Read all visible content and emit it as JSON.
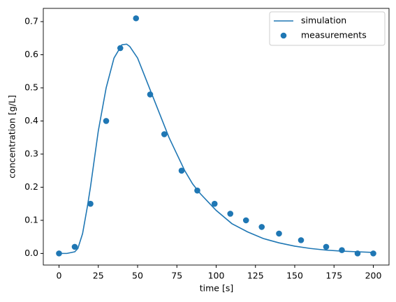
{
  "chart_data": {
    "type": "line",
    "xlabel": "time [s]",
    "ylabel": "concentration [g/L]",
    "xlim": [
      -10,
      210
    ],
    "xticks": [
      0,
      25,
      50,
      75,
      100,
      125,
      150,
      175,
      200
    ],
    "ylim": [
      -0.035,
      0.74
    ],
    "yticks": [
      {
        "value": 0,
        "label": "0.0"
      },
      0.1,
      0.2,
      0.3,
      0.4,
      0.5,
      0.6,
      0.7
    ],
    "grid": false,
    "legend": "upper right",
    "series": [
      {
        "name": "simulation",
        "type": "line",
        "color": "#1f77b4",
        "x": [
          0,
          5,
          10,
          12,
          15,
          18,
          20,
          25,
          30,
          35,
          40,
          43,
          45,
          50,
          55,
          60,
          65,
          70,
          75,
          80,
          85,
          90,
          95,
          100,
          110,
          120,
          130,
          140,
          150,
          160,
          170,
          180,
          190,
          200
        ],
        "values": [
          0,
          0,
          0.005,
          0.015,
          0.06,
          0.14,
          0.2,
          0.37,
          0.5,
          0.59,
          0.63,
          0.632,
          0.625,
          0.59,
          0.53,
          0.47,
          0.41,
          0.35,
          0.3,
          0.25,
          0.21,
          0.18,
          0.155,
          0.13,
          0.09,
          0.065,
          0.045,
          0.032,
          0.022,
          0.015,
          0.01,
          0.007,
          0.005,
          0.003
        ]
      },
      {
        "name": "measurements",
        "type": "scatter",
        "color": "#1f77b4",
        "x": [
          0,
          10,
          20,
          30,
          39,
          49,
          58,
          67,
          78,
          88,
          99,
          109,
          119,
          129,
          140,
          154,
          170,
          180,
          190,
          200
        ],
        "values": [
          0,
          0.02,
          0.15,
          0.4,
          0.62,
          0.71,
          0.48,
          0.36,
          0.25,
          0.19,
          0.15,
          0.12,
          0.1,
          0.08,
          0.06,
          0.04,
          0.02,
          0.01,
          0,
          0
        ]
      }
    ]
  }
}
